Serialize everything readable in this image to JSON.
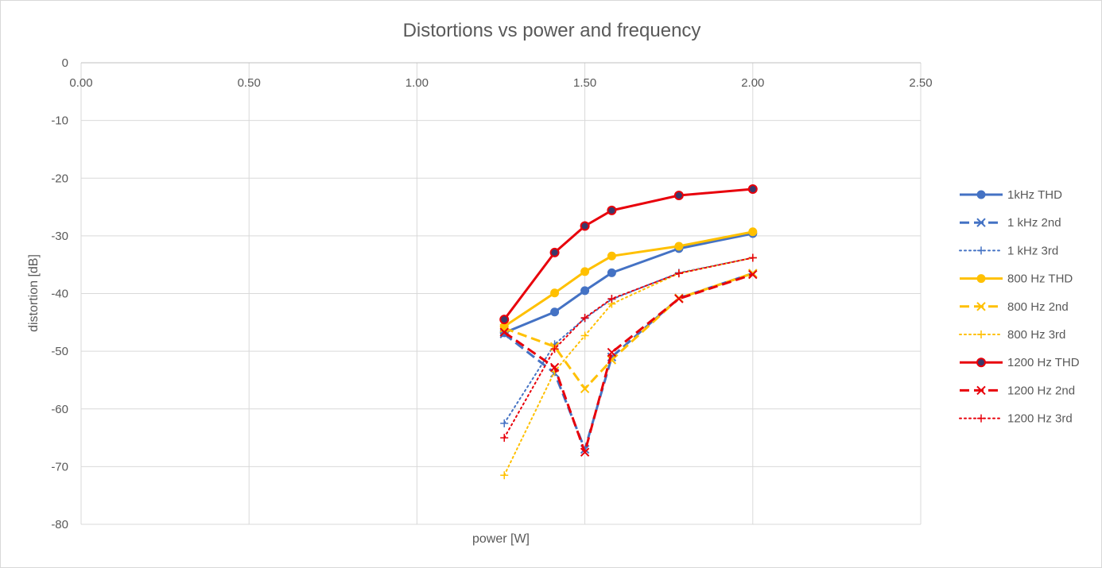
{
  "chart_data": {
    "type": "scatter",
    "title": "Distortions vs power and frequency",
    "xlabel": "power [W]",
    "ylabel": "distortion [dB]",
    "xlim": [
      0,
      2.5
    ],
    "ylim": [
      -80,
      0
    ],
    "x_ticks": [
      "0.00",
      "0.50",
      "1.00",
      "1.50",
      "2.00",
      "2.50"
    ],
    "x_tick_values": [
      0,
      0.5,
      1,
      1.5,
      2,
      2.5
    ],
    "y_ticks": [
      "0",
      "-10",
      "-20",
      "-30",
      "-40",
      "-50",
      "-60",
      "-70",
      "-80"
    ],
    "y_tick_values": [
      0,
      -10,
      -20,
      -30,
      -40,
      -50,
      -60,
      -70,
      -80
    ],
    "x_axis_position": "top",
    "grid": true,
    "legend_position": "right",
    "series": [
      {
        "name": "1kHz THD",
        "color": "#4472c4",
        "line": "solid",
        "marker": "circle",
        "x": [
          1.26,
          1.41,
          1.5,
          1.58,
          1.78,
          2.0
        ],
        "y": [
          -46.8,
          -43.2,
          -39.5,
          -36.4,
          -32.2,
          -29.6
        ]
      },
      {
        "name": "1 kHz 2nd",
        "color": "#4472c4",
        "line": "dash",
        "marker": "x",
        "x": [
          1.26,
          1.41,
          1.5,
          1.58,
          1.78,
          2.0
        ],
        "y": [
          -47.0,
          -53.8,
          -67.0,
          -51.0,
          -40.8,
          -36.5
        ]
      },
      {
        "name": "1 kHz 3rd",
        "color": "#4472c4",
        "line": "dot",
        "marker": "plus",
        "x": [
          1.26,
          1.41,
          1.5,
          1.58,
          1.78,
          2.0
        ],
        "y": [
          -62.5,
          -48.8,
          -44.3,
          -41.0,
          -36.4,
          -33.8
        ]
      },
      {
        "name": "800 Hz THD",
        "color": "#ffc000",
        "line": "solid",
        "marker": "circle",
        "x": [
          1.26,
          1.41,
          1.5,
          1.58,
          1.78,
          2.0
        ],
        "y": [
          -45.7,
          -39.9,
          -36.2,
          -33.5,
          -31.8,
          -29.3
        ]
      },
      {
        "name": "800 Hz 2nd",
        "color": "#ffc000",
        "line": "dash",
        "marker": "x",
        "x": [
          1.26,
          1.41,
          1.5,
          1.58,
          1.78,
          2.0
        ],
        "y": [
          -46.0,
          -49.2,
          -56.5,
          -51.5,
          -40.8,
          -36.5
        ]
      },
      {
        "name": "800 Hz 3rd",
        "color": "#ffc000",
        "line": "dot",
        "marker": "plus",
        "x": [
          1.26,
          1.41,
          1.5,
          1.58,
          1.78,
          2.0
        ],
        "y": [
          -71.5,
          -53.5,
          -47.3,
          -41.8,
          -36.5,
          -33.8
        ]
      },
      {
        "name": "1200 Hz THD",
        "color": "#e8000b",
        "line": "solid",
        "marker": "circle-dark",
        "x": [
          1.26,
          1.41,
          1.5,
          1.58,
          1.78,
          2.0
        ],
        "y": [
          -44.5,
          -32.9,
          -28.3,
          -25.6,
          -23.0,
          -21.9
        ]
      },
      {
        "name": "1200 Hz 2nd",
        "color": "#e8000b",
        "line": "dash",
        "marker": "x",
        "x": [
          1.26,
          1.41,
          1.5,
          1.58,
          1.78,
          2.0
        ],
        "y": [
          -46.7,
          -52.8,
          -67.5,
          -50.2,
          -40.9,
          -36.7
        ]
      },
      {
        "name": "1200 Hz 3rd",
        "color": "#e8000b",
        "line": "dot",
        "marker": "plus",
        "x": [
          1.26,
          1.41,
          1.5,
          1.58,
          1.78,
          2.0
        ],
        "y": [
          -65.0,
          -49.6,
          -44.2,
          -40.9,
          -36.5,
          -33.8
        ]
      }
    ]
  }
}
